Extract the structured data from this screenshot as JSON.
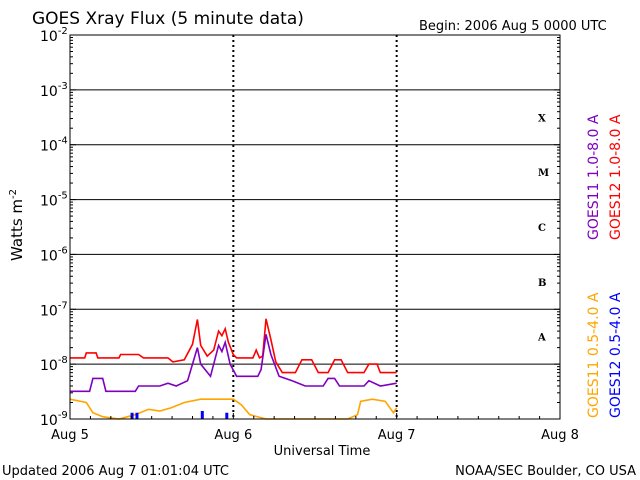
{
  "header": {
    "title": "GOES Xray Flux (5 minute data)",
    "begin": "Begin:  2006 Aug 5 0000 UTC"
  },
  "footer": {
    "updated": "Updated 2006 Aug  7 01:01:04 UTC",
    "source": "NOAA/SEC Boulder, CO USA"
  },
  "chart_data": {
    "type": "line",
    "xlabel": "Universal Time",
    "ylabel": "Watts m",
    "ylabel_sup": "-2",
    "y_scale": "log",
    "ylim": [
      1e-09,
      0.01
    ],
    "xlim": [
      0,
      3
    ],
    "x_unit": "days since 2006 Aug 5 0000 UTC",
    "x_ticks": [
      {
        "x": 0,
        "label": "Aug 5"
      },
      {
        "x": 1,
        "label": "Aug 6"
      },
      {
        "x": 2,
        "label": "Aug 7"
      },
      {
        "x": 3,
        "label": "Aug 8"
      }
    ],
    "y_ticks": [
      {
        "exp": -9,
        "base": "10",
        "sup": "-9"
      },
      {
        "exp": -8,
        "base": "10",
        "sup": "-8"
      },
      {
        "exp": -7,
        "base": "10",
        "sup": "-7"
      },
      {
        "exp": -6,
        "base": "10",
        "sup": "-6"
      },
      {
        "exp": -5,
        "base": "10",
        "sup": "-5"
      },
      {
        "exp": -4,
        "base": "10",
        "sup": "-4"
      },
      {
        "exp": -3,
        "base": "10",
        "sup": "-3"
      },
      {
        "exp": -2,
        "base": "10",
        "sup": "-2"
      }
    ],
    "flare_classes": [
      {
        "label": "A",
        "exp": -7.5
      },
      {
        "label": "B",
        "exp": -6.5
      },
      {
        "label": "C",
        "exp": -5.5
      },
      {
        "label": "M",
        "exp": -4.5
      },
      {
        "label": "X",
        "exp": -3.5
      }
    ],
    "legend_right": [
      {
        "text": "GOES12 1.0-8.0 A",
        "color": "#ff0000"
      },
      {
        "text": "GOES11 1.0-8.0 A",
        "color": "#7f00bf"
      }
    ],
    "legend_bottom": [
      {
        "text": "GOES12 0.5-4.0 A",
        "color": "#0000ff"
      },
      {
        "text": "GOES11 0.5-4.0 A",
        "color": "#ffa500"
      }
    ],
    "series": [
      {
        "name": "GOES12 1.0-8.0 A",
        "color": "#ff0000",
        "points": [
          [
            0,
            1.3e-08
          ],
          [
            0.09,
            1.3e-08
          ],
          [
            0.1,
            1.6e-08
          ],
          [
            0.16,
            1.6e-08
          ],
          [
            0.17,
            1.3e-08
          ],
          [
            0.3,
            1.3e-08
          ],
          [
            0.31,
            1.5e-08
          ],
          [
            0.42,
            1.5e-08
          ],
          [
            0.45,
            1.3e-08
          ],
          [
            0.6,
            1.3e-08
          ],
          [
            0.63,
            1.1e-08
          ],
          [
            0.7,
            1.2e-08
          ],
          [
            0.75,
            2.3e-08
          ],
          [
            0.78,
            6.5e-08
          ],
          [
            0.8,
            2.2e-08
          ],
          [
            0.84,
            1.4e-08
          ],
          [
            0.88,
            1.8e-08
          ],
          [
            0.91,
            4e-08
          ],
          [
            0.93,
            3.3e-08
          ],
          [
            0.95,
            4.4e-08
          ],
          [
            0.97,
            2.5e-08
          ],
          [
            1.0,
            1.5e-08
          ],
          [
            1.02,
            1.3e-08
          ],
          [
            1.12,
            1.3e-08
          ],
          [
            1.14,
            1.8e-08
          ],
          [
            1.16,
            1.3e-08
          ],
          [
            1.18,
            1.4e-08
          ],
          [
            1.2,
            6.7e-08
          ],
          [
            1.23,
            2.8e-08
          ],
          [
            1.26,
            1.1e-08
          ],
          [
            1.3,
            7e-09
          ],
          [
            1.38,
            7e-09
          ],
          [
            1.42,
            1.2e-08
          ],
          [
            1.48,
            1.2e-08
          ],
          [
            1.52,
            7e-09
          ],
          [
            1.58,
            7e-09
          ],
          [
            1.62,
            1.2e-08
          ],
          [
            1.66,
            1.2e-08
          ],
          [
            1.7,
            7e-09
          ],
          [
            1.8,
            7e-09
          ],
          [
            1.83,
            1e-08
          ],
          [
            1.88,
            1e-08
          ],
          [
            1.9,
            7e-09
          ],
          [
            2.0,
            7e-09
          ]
        ]
      },
      {
        "name": "GOES11 1.0-8.0 A",
        "color": "#7f00bf",
        "points": [
          [
            0,
            3.2e-09
          ],
          [
            0.12,
            3.2e-09
          ],
          [
            0.14,
            5.5e-09
          ],
          [
            0.2,
            5.5e-09
          ],
          [
            0.22,
            3.2e-09
          ],
          [
            0.4,
            3.2e-09
          ],
          [
            0.42,
            4e-09
          ],
          [
            0.55,
            4e-09
          ],
          [
            0.6,
            4.5e-09
          ],
          [
            0.65,
            4e-09
          ],
          [
            0.72,
            5e-09
          ],
          [
            0.78,
            2e-08
          ],
          [
            0.8,
            1e-08
          ],
          [
            0.86,
            6e-09
          ],
          [
            0.91,
            2.2e-08
          ],
          [
            0.93,
            1.7e-08
          ],
          [
            0.95,
            2.5e-08
          ],
          [
            0.98,
            1e-08
          ],
          [
            1.02,
            6e-09
          ],
          [
            1.15,
            6e-09
          ],
          [
            1.17,
            8e-09
          ],
          [
            1.2,
            3.5e-08
          ],
          [
            1.23,
            1.5e-08
          ],
          [
            1.28,
            6e-09
          ],
          [
            1.36,
            5e-09
          ],
          [
            1.44,
            4e-09
          ],
          [
            1.55,
            4e-09
          ],
          [
            1.58,
            5.5e-09
          ],
          [
            1.62,
            5.5e-09
          ],
          [
            1.65,
            4e-09
          ],
          [
            1.75,
            4e-09
          ],
          [
            1.8,
            4e-09
          ],
          [
            1.83,
            5e-09
          ],
          [
            1.9,
            4e-09
          ],
          [
            2.0,
            4.5e-09
          ]
        ]
      },
      {
        "name": "GOES11 0.5-4.0 A",
        "color": "#ffa500",
        "points": [
          [
            0,
            2.3e-09
          ],
          [
            0.1,
            2e-09
          ],
          [
            0.14,
            1.3e-09
          ],
          [
            0.2,
            1.1e-09
          ],
          [
            0.3,
            1e-09
          ],
          [
            0.4,
            1.2e-09
          ],
          [
            0.48,
            1.5e-09
          ],
          [
            0.55,
            1.4e-09
          ],
          [
            0.62,
            1.6e-09
          ],
          [
            0.7,
            2e-09
          ],
          [
            0.8,
            2.3e-09
          ],
          [
            0.9,
            2.3e-09
          ],
          [
            1.0,
            2.3e-09
          ],
          [
            1.05,
            1.8e-09
          ],
          [
            1.1,
            1.2e-09
          ],
          [
            1.2,
            1e-09
          ],
          [
            1.3,
            1e-09
          ],
          [
            1.5,
            1e-09
          ],
          [
            1.6,
            1e-09
          ],
          [
            1.7,
            1e-09
          ],
          [
            1.76,
            1.2e-09
          ],
          [
            1.78,
            2.1e-09
          ],
          [
            1.85,
            2.3e-09
          ],
          [
            1.93,
            2.1e-09
          ],
          [
            1.98,
            1.3e-09
          ],
          [
            2.0,
            1.6e-09
          ]
        ]
      },
      {
        "name": "GOES12 0.5-4.0 A",
        "color": "#0000ff",
        "points": [
          [
            0.37,
            1e-09
          ],
          [
            0.38,
            1.3e-09
          ],
          [
            0.41,
            1.3e-09
          ],
          [
            0.42,
            1e-09
          ],
          [
            0.8,
            1e-09
          ],
          [
            0.81,
            1.4e-09
          ],
          [
            0.82,
            1e-09
          ],
          [
            0.95,
            1e-09
          ],
          [
            0.96,
            1.3e-09
          ],
          [
            0.97,
            1e-09
          ]
        ]
      }
    ]
  }
}
